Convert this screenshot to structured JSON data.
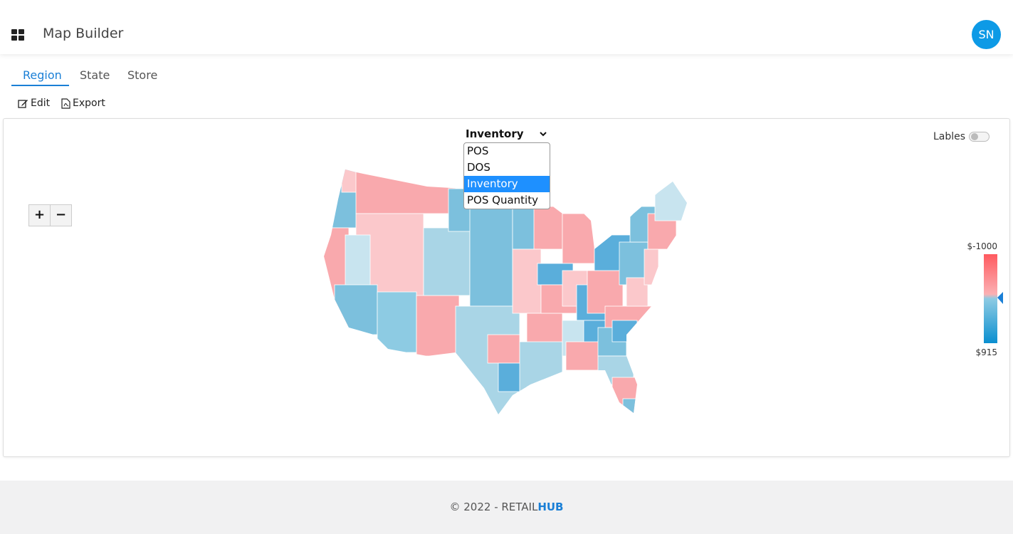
{
  "header": {
    "title": "Map Builder",
    "avatar": "SN"
  },
  "tabs": [
    "Region",
    "State",
    "Store"
  ],
  "actions": [
    "Edit",
    "Export"
  ],
  "dropdown": {
    "selected": "Inventory",
    "options": [
      "POS",
      "DOS",
      "Inventory",
      "POS Quantity"
    ]
  },
  "toggle": {
    "label": "Lables"
  },
  "zoom": {
    "in": "+",
    "out": "−"
  },
  "legend": {
    "max": "$-1000",
    "min": "$915"
  },
  "footer": {
    "copyright": "© 2022 - RETAIL",
    "brand": "HUB"
  }
}
